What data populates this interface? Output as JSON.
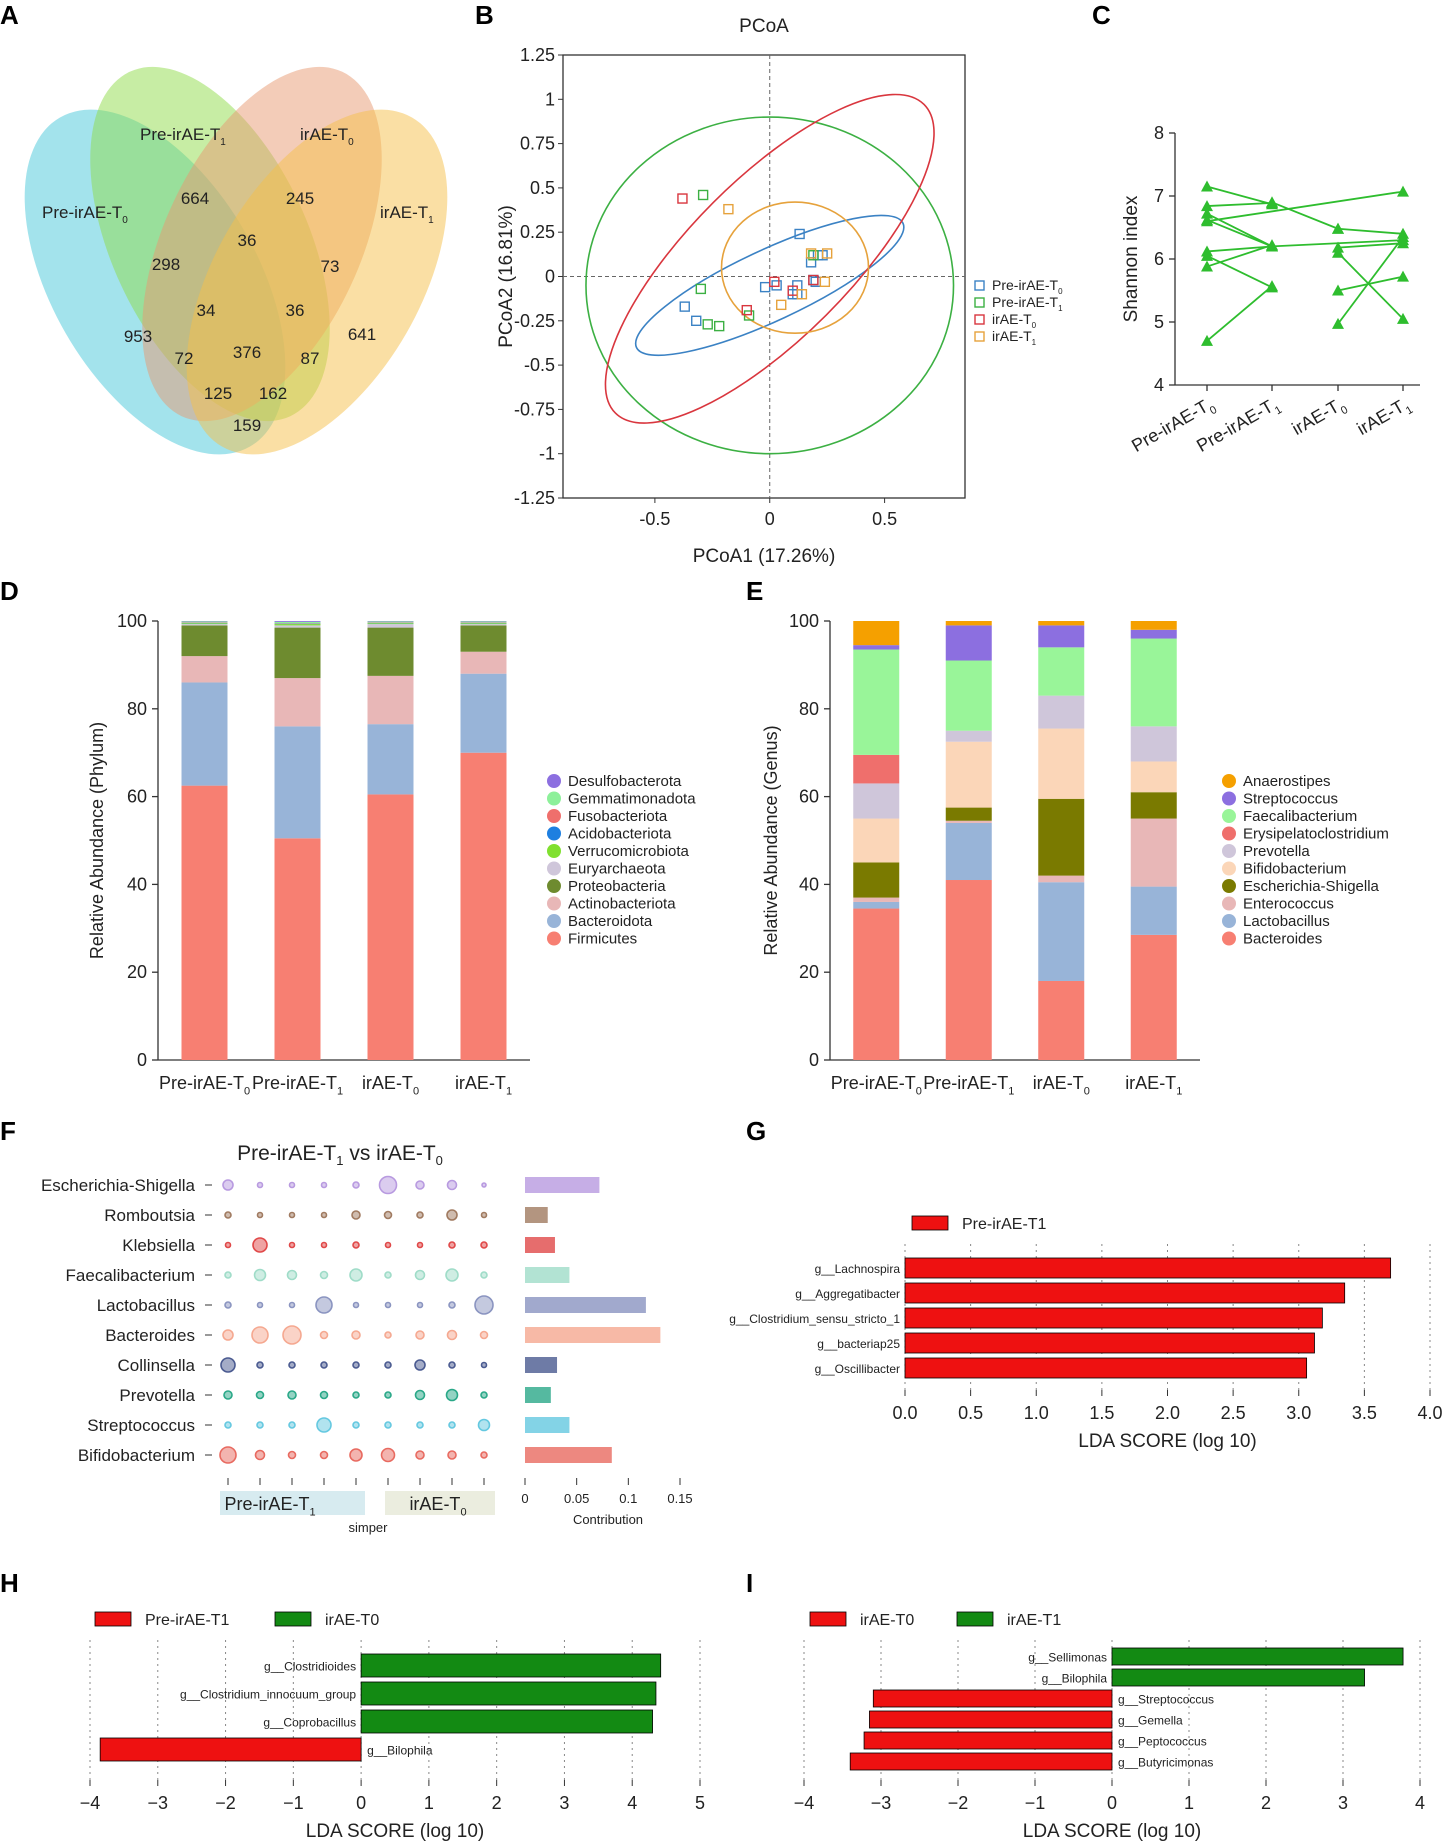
{
  "panel_labels": [
    "A",
    "B",
    "C",
    "D",
    "E",
    "F",
    "G",
    "H",
    "I"
  ],
  "colors": {
    "pre_t0": "#47c7d9",
    "pre_t1": "#8fdc4a",
    "irae_t0": "#e89a72",
    "irae_t1": "#f5c04a",
    "lda_red": "#ee1111",
    "lda_green": "#138a13",
    "shannon": "#2ebd2e"
  },
  "chart_data": [
    {
      "id": "A",
      "type": "venn",
      "sets": [
        {
          "name": "Pre-irAE-T",
          "sub": "0"
        },
        {
          "name": "Pre-irAE-T",
          "sub": "1"
        },
        {
          "name": "irAE-T",
          "sub": "0"
        },
        {
          "name": "irAE-T",
          "sub": "1"
        }
      ],
      "counts": [
        "953",
        "664",
        "245",
        "641",
        "298",
        "36",
        "73",
        "34",
        "36",
        "376",
        "72",
        "87",
        "125",
        "162",
        "159"
      ]
    },
    {
      "id": "B",
      "type": "scatter",
      "title": "PCoA",
      "xlabel": "PCoA1 (17.26%)",
      "ylabel": "PCoA2 (16.81%)",
      "xlim": [
        -0.9,
        0.85
      ],
      "ylim": [
        -1.25,
        1.25
      ],
      "xticks": [
        "-0.5",
        "0",
        "0.5"
      ],
      "yticks": [
        "1.25",
        "1",
        "0.75",
        "0.5",
        "0.25",
        "0",
        "-0.25",
        "-0.5",
        "-0.75",
        "-1",
        "-1.25"
      ],
      "legend": [
        {
          "name": "Pre-irAE-T",
          "sub": "0",
          "color": "#3b82c4"
        },
        {
          "name": "Pre-irAE-T",
          "sub": "1",
          "color": "#3cb043"
        },
        {
          "name": "irAE-T",
          "sub": "0",
          "color": "#d9363e"
        },
        {
          "name": "irAE-T",
          "sub": "1",
          "color": "#e6a23c"
        }
      ],
      "series": [
        {
          "name": "Pre-irAE-T0",
          "points": [
            [
              0.13,
              0.24
            ],
            [
              0.18,
              0.08
            ],
            [
              0.21,
              0.12
            ],
            [
              0.23,
              0.12
            ],
            [
              0.12,
              -0.05
            ],
            [
              0.19,
              -0.02
            ],
            [
              0.2,
              -0.03
            ],
            [
              0.1,
              -0.1
            ],
            [
              -0.02,
              -0.06
            ],
            [
              0.03,
              -0.05
            ],
            [
              0.12,
              -0.1
            ],
            [
              -0.32,
              -0.25
            ],
            [
              -0.37,
              -0.17
            ]
          ]
        },
        {
          "name": "Pre-irAE-T1",
          "points": [
            [
              -0.29,
              0.46
            ],
            [
              -0.3,
              -0.07
            ],
            [
              -0.27,
              -0.27
            ],
            [
              -0.22,
              -0.28
            ],
            [
              -0.09,
              -0.22
            ],
            [
              0.19,
              0.12
            ]
          ]
        },
        {
          "name": "irAE-T0",
          "points": [
            [
              -0.38,
              0.44
            ],
            [
              -0.1,
              -0.19
            ],
            [
              0.02,
              -0.03
            ],
            [
              0.19,
              -0.02
            ],
            [
              0.1,
              -0.08
            ]
          ]
        },
        {
          "name": "irAE-T1",
          "points": [
            [
              -0.18,
              0.38
            ],
            [
              0.18,
              0.13
            ],
            [
              0.25,
              0.13
            ],
            [
              0.24,
              -0.03
            ],
            [
              0.05,
              -0.16
            ],
            [
              0.14,
              -0.1
            ]
          ]
        }
      ],
      "ellipses": [
        {
          "series": "Pre-irAE-T0",
          "cx": 0.0,
          "cy": -0.05,
          "rx": 0.64,
          "ry": 0.2,
          "angle": 25
        },
        {
          "series": "Pre-irAE-T1",
          "cx": 0.0,
          "cy": -0.05,
          "rx": 0.8,
          "ry": 0.95,
          "angle": 0
        },
        {
          "series": "irAE-T0",
          "cx": 0.0,
          "cy": 0.1,
          "rx": 0.95,
          "ry": 0.45,
          "angle": 45
        },
        {
          "series": "irAE-T1",
          "cx": 0.11,
          "cy": 0.05,
          "rx": 0.32,
          "ry": 0.37,
          "angle": 0
        }
      ]
    },
    {
      "id": "C",
      "type": "line",
      "ylabel": "Shannon index",
      "ylim": [
        4,
        8
      ],
      "yticks": [
        "4",
        "5",
        "6",
        "7",
        "8"
      ],
      "categories": [
        {
          "name": "Pre-irAE-T",
          "sub": "0"
        },
        {
          "name": "Pre-irAE-T",
          "sub": "1"
        },
        {
          "name": "irAE-T",
          "sub": "0"
        },
        {
          "name": "irAE-T",
          "sub": "1"
        }
      ],
      "pairs": [
        [
          0,
          1,
          7.15,
          6.87
        ],
        [
          0,
          1,
          6.84,
          6.89
        ],
        [
          0,
          1,
          6.72,
          6.2
        ],
        [
          0,
          1,
          6.62,
          6.2
        ],
        [
          0,
          1,
          6.12,
          6.2
        ],
        [
          0,
          1,
          6.05,
          5.55
        ],
        [
          0,
          1,
          5.88,
          6.22
        ],
        [
          0,
          1,
          4.7,
          5.57
        ],
        [
          2,
          3,
          6.48,
          6.4
        ],
        [
          2,
          3,
          6.18,
          6.25
        ],
        [
          2,
          3,
          5.5,
          5.72
        ],
        [
          2,
          3,
          4.97,
          6.35
        ],
        [
          0,
          3,
          6.6,
          7.07
        ],
        [
          1,
          2,
          6.9,
          6.48
        ],
        [
          1,
          3,
          6.2,
          6.3
        ],
        [
          2,
          3,
          6.1,
          5.05
        ]
      ]
    },
    {
      "id": "D",
      "type": "bar",
      "ylabel": "Relative Abundance (Phylum)",
      "ylim": [
        0,
        100
      ],
      "yticks": [
        "0",
        "20",
        "40",
        "60",
        "80",
        "100"
      ],
      "categories": [
        {
          "name": "Pre-irAE-T",
          "sub": "0"
        },
        {
          "name": "Pre-irAE-T",
          "sub": "1"
        },
        {
          "name": "irAE-T",
          "sub": "0"
        },
        {
          "name": "irAE-T",
          "sub": "1"
        }
      ],
      "series": [
        {
          "name": "Firmicutes",
          "color": "#f77f72",
          "values": [
            62.5,
            50.5,
            60.5,
            70
          ]
        },
        {
          "name": "Bacteroidota",
          "color": "#98b4d8",
          "values": [
            23.5,
            25.5,
            16,
            18
          ]
        },
        {
          "name": "Actinobacteriota",
          "color": "#e8b7b7",
          "values": [
            6,
            11,
            11,
            5
          ]
        },
        {
          "name": "Proteobacteria",
          "color": "#6e8b2f",
          "values": [
            7,
            11.5,
            11,
            6
          ]
        },
        {
          "name": "Euryarchaeota",
          "color": "#cfc6da",
          "values": [
            0.3,
            0.5,
            0.8,
            0.3
          ]
        },
        {
          "name": "Verrucomicrobiota",
          "color": "#80e030",
          "values": [
            0.2,
            0.3,
            0.2,
            0.2
          ]
        },
        {
          "name": "Acidobacteriota",
          "color": "#1e7fe0",
          "values": [
            0.1,
            0.1,
            0.1,
            0.1
          ]
        },
        {
          "name": "Fusobacteriota",
          "color": "#ef6f6c",
          "values": [
            0.1,
            0.1,
            0.1,
            0.1
          ]
        },
        {
          "name": "Gemmatimonadota",
          "color": "#8df09a",
          "values": [
            0.2,
            0.3,
            0.2,
            0.2
          ]
        },
        {
          "name": "Desulfobacterota",
          "color": "#8c6fe0",
          "values": [
            0.1,
            0.2,
            0.1,
            0.1
          ]
        }
      ]
    },
    {
      "id": "E",
      "type": "bar",
      "ylabel": "Relative Abundance (Genus)",
      "ylim": [
        0,
        100
      ],
      "yticks": [
        "0",
        "20",
        "40",
        "60",
        "80",
        "100"
      ],
      "categories": [
        {
          "name": "Pre-irAE-T",
          "sub": "0"
        },
        {
          "name": "Pre-irAE-T",
          "sub": "1"
        },
        {
          "name": "irAE-T",
          "sub": "0"
        },
        {
          "name": "irAE-T",
          "sub": "1"
        }
      ],
      "series": [
        {
          "name": "Bacteroides",
          "color": "#f77f72",
          "values": [
            34.5,
            41,
            18,
            28.5
          ]
        },
        {
          "name": "Lactobacillus",
          "color": "#98b4d8",
          "values": [
            1.5,
            13,
            22.5,
            11
          ]
        },
        {
          "name": "Enterococcus",
          "color": "#e8b7b7",
          "values": [
            1,
            0.5,
            1.5,
            15.5
          ]
        },
        {
          "name": "Escherichia-Shigella",
          "color": "#7a7a00",
          "values": [
            8,
            3,
            17.5,
            6
          ]
        },
        {
          "name": "Bifidobacterium",
          "color": "#fbd6b8",
          "values": [
            10,
            15,
            16,
            7
          ]
        },
        {
          "name": "Prevotella",
          "color": "#cfc6da",
          "values": [
            8,
            2.5,
            7.5,
            8
          ]
        },
        {
          "name": "Erysipelatoclostridium",
          "color": "#ef6f6c",
          "values": [
            6.5,
            0,
            0,
            0
          ]
        },
        {
          "name": "Faecalibacterium",
          "color": "#99f599",
          "values": [
            24,
            16,
            11,
            20
          ]
        },
        {
          "name": "Streptococcus",
          "color": "#8c6fe0",
          "values": [
            1,
            8,
            5,
            2
          ]
        },
        {
          "name": "Anaerostipes",
          "color": "#f5a000",
          "values": [
            5.5,
            1,
            1,
            2
          ]
        }
      ]
    },
    {
      "id": "F",
      "type": "scatter",
      "title": "Pre-irAE-T",
      "title_sub": "1",
      "title_mid": "vs irAE-T",
      "title_sub2": "0",
      "taxa": [
        "Escherichia-Shigella",
        "Romboutsia",
        "Klebsiella",
        "Faecalibacterium",
        "Lactobacillus",
        "Bacteroides",
        "Collinsella",
        "Prevotella",
        "Streptococcus",
        "Bifidobacterium"
      ],
      "taxa_colors": [
        "#b89ae0",
        "#a07a60",
        "#e04848",
        "#9fdcc8",
        "#8a94c0",
        "#f5a890",
        "#4a5a90",
        "#2aa888",
        "#64c8e0",
        "#e86a60"
      ],
      "sizes": [
        [
          1,
          0.5,
          0.5,
          0.5,
          0.6,
          1.7,
          0.8,
          0.9,
          0.4
        ],
        [
          0.6,
          0.5,
          0.5,
          0.5,
          0.8,
          0.7,
          0.6,
          1,
          0.5
        ],
        [
          0.5,
          1.4,
          0.5,
          0.5,
          0.6,
          0.5,
          0.5,
          0.6,
          0.6
        ],
        [
          0.6,
          1.1,
          0.9,
          0.7,
          1.2,
          0.6,
          0.9,
          1.2,
          0.6
        ],
        [
          0.6,
          0.5,
          0.5,
          1.6,
          0.5,
          0.5,
          0.5,
          0.6,
          1.8
        ],
        [
          1,
          1.6,
          1.8,
          0.7,
          0.8,
          0.6,
          0.8,
          0.9,
          0.7
        ],
        [
          1.4,
          0.6,
          0.6,
          0.6,
          0.6,
          0.6,
          1,
          0.6,
          0.5
        ],
        [
          0.8,
          0.7,
          0.8,
          0.7,
          0.6,
          0.6,
          0.9,
          1.1,
          0.6
        ],
        [
          0.6,
          0.6,
          0.6,
          1.4,
          0.6,
          0.6,
          0.6,
          0.6,
          1.1
        ],
        [
          1.6,
          0.9,
          0.7,
          0.7,
          1.2,
          1.3,
          0.8,
          0.8,
          0.6
        ]
      ],
      "contribution": [
        0.072,
        0.022,
        0.029,
        0.043,
        0.117,
        0.131,
        0.031,
        0.025,
        0.043,
        0.084
      ],
      "contribution_ticks": [
        "0",
        "0.05",
        "0.1",
        "0.15"
      ],
      "contribution_label": "Contribution",
      "group1": "Pre-irAE-T",
      "group1_sub": "1",
      "group2": "irAE-T",
      "group2_sub": "0",
      "simper_label": "simper"
    },
    {
      "id": "G",
      "type": "bar",
      "legend": [
        {
          "name": "Pre-irAE-T1",
          "color": "#ee1111"
        }
      ],
      "xlabel": "LDA SCORE (log 10)",
      "xlim": [
        0,
        4
      ],
      "xticks": [
        "0.0",
        "0.5",
        "1.0",
        "1.5",
        "2.0",
        "2.5",
        "3.0",
        "3.5",
        "4.0"
      ],
      "taxa": [
        "g__Lachnospira",
        "g__Aggregatibacter",
        "g__Clostridium_sensu_stricto_1",
        "g__bacteriap25",
        "g__Oscillibacter"
      ],
      "values": [
        3.7,
        3.35,
        3.18,
        3.12,
        3.06
      ],
      "groups": [
        0,
        0,
        0,
        0,
        0
      ]
    },
    {
      "id": "H",
      "type": "bar",
      "legend": [
        {
          "name": "Pre-irAE-T1",
          "color": "#ee1111"
        },
        {
          "name": "irAE-T0",
          "color": "#138a13"
        }
      ],
      "xlabel": "LDA SCORE (log 10)",
      "xlim": [
        -4,
        5
      ],
      "xticks": [
        "−4",
        "−3",
        "−2",
        "−1",
        "0",
        "1",
        "2",
        "3",
        "4",
        "5"
      ],
      "taxa": [
        "g__Clostridioides",
        "g__Clostridium_innocuum_group",
        "g__Coprobacillus",
        "g__Bilophila"
      ],
      "values": [
        4.42,
        4.35,
        4.3,
        -3.85
      ],
      "groups": [
        1,
        1,
        1,
        0
      ]
    },
    {
      "id": "I",
      "type": "bar",
      "legend": [
        {
          "name": "irAE-T0",
          "color": "#ee1111"
        },
        {
          "name": "irAE-T1",
          "color": "#138a13"
        }
      ],
      "xlabel": "LDA SCORE (log 10)",
      "xlim": [
        -4,
        4
      ],
      "xticks": [
        "−4",
        "−3",
        "−2",
        "−1",
        "0",
        "1",
        "2",
        "3",
        "4"
      ],
      "taxa": [
        "g__Sellimonas",
        "g__Bilophila",
        "g__Streptococcus",
        "g__Gemella",
        "g__Peptococcus",
        "g__Butyricimonas"
      ],
      "values": [
        3.78,
        3.28,
        -3.1,
        -3.15,
        -3.22,
        -3.4
      ],
      "groups": [
        1,
        1,
        0,
        0,
        0,
        0
      ]
    }
  ]
}
